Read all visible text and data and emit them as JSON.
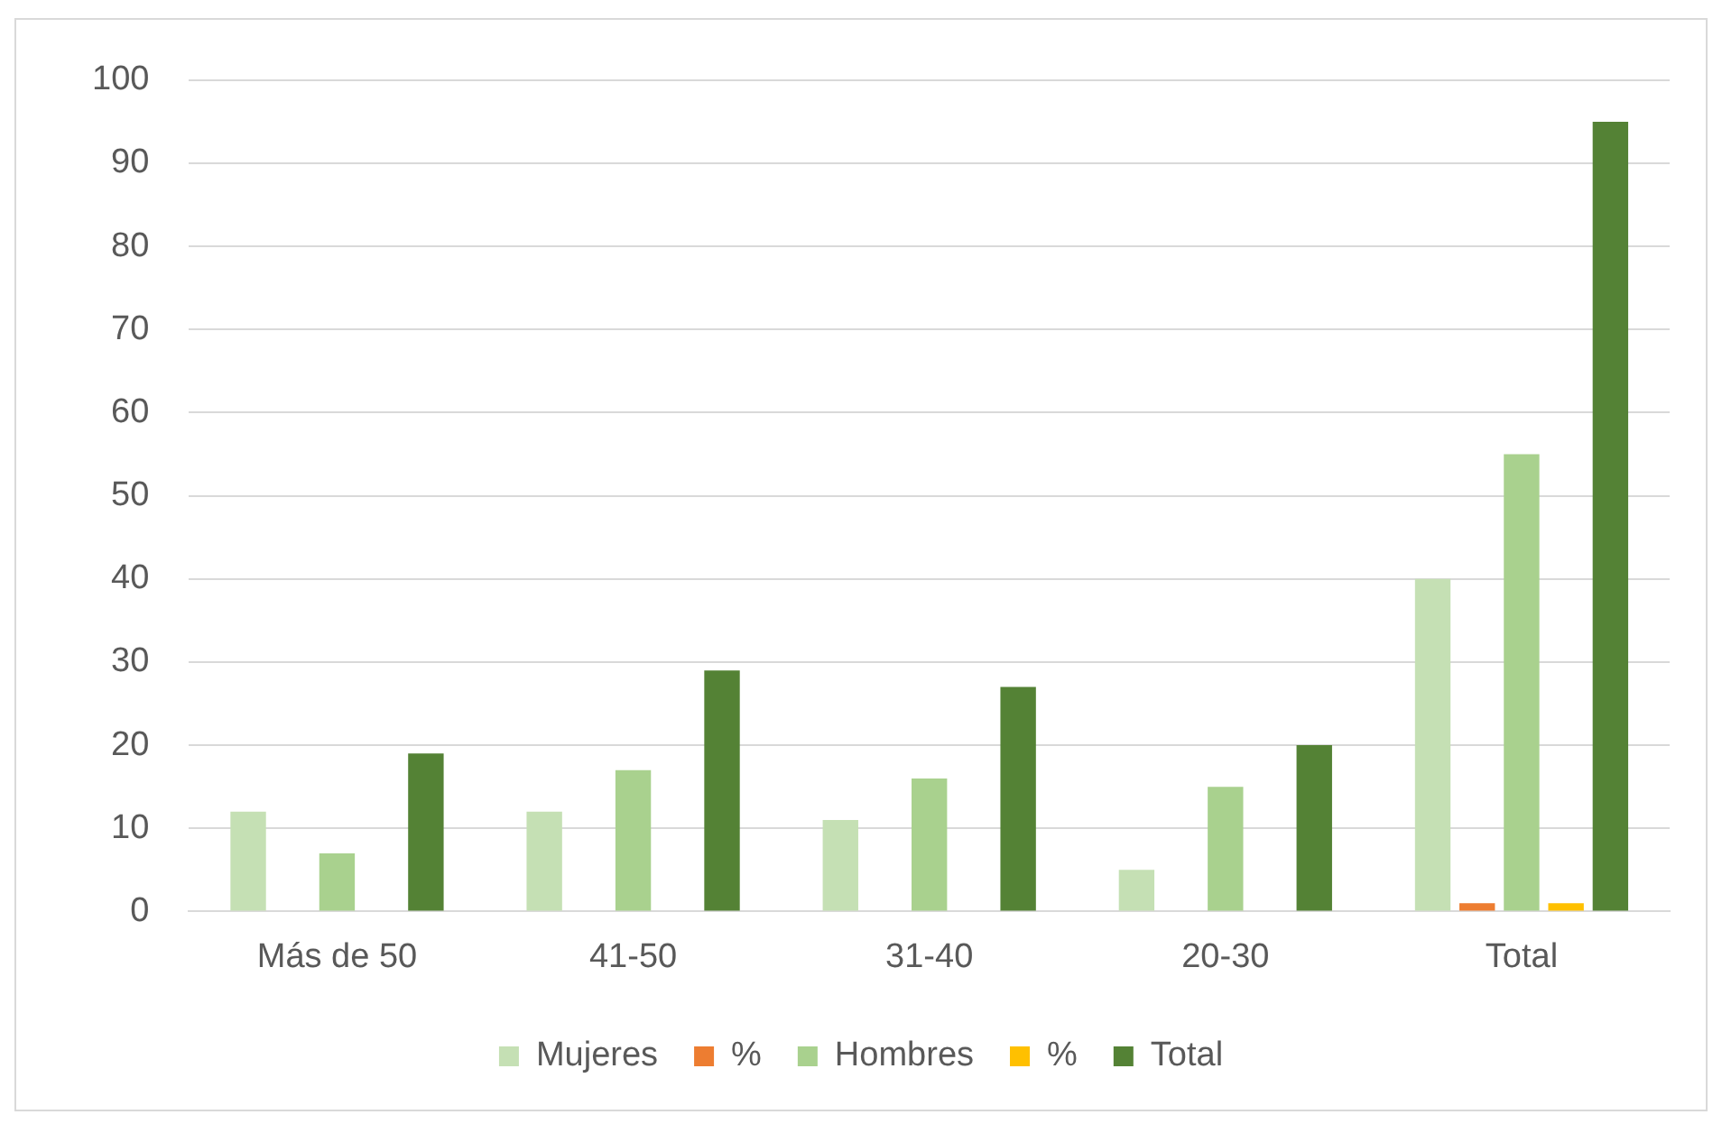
{
  "chart_data": {
    "type": "bar",
    "categories": [
      "Más de 50",
      "41-50",
      "31-40",
      "20-30",
      "Total"
    ],
    "series": [
      {
        "name": "Mujeres",
        "color": "#c5e0b4",
        "values": [
          12,
          12,
          11,
          5,
          40
        ]
      },
      {
        "name": "%",
        "color": "#ed7d31",
        "values": [
          0,
          0,
          0,
          0,
          1
        ]
      },
      {
        "name": "Hombres",
        "color": "#a9d18e",
        "values": [
          7,
          17,
          16,
          15,
          55
        ]
      },
      {
        "name": "%",
        "color": "#ffc000",
        "values": [
          0,
          0,
          0,
          0,
          1
        ]
      },
      {
        "name": "Total",
        "color": "#548235",
        "values": [
          19,
          29,
          27,
          20,
          95
        ]
      }
    ],
    "ylim": [
      0,
      100
    ],
    "yticks": [
      0,
      10,
      20,
      30,
      40,
      50,
      60,
      70,
      80,
      90,
      100
    ],
    "grid": "y",
    "legend": "bottom"
  }
}
